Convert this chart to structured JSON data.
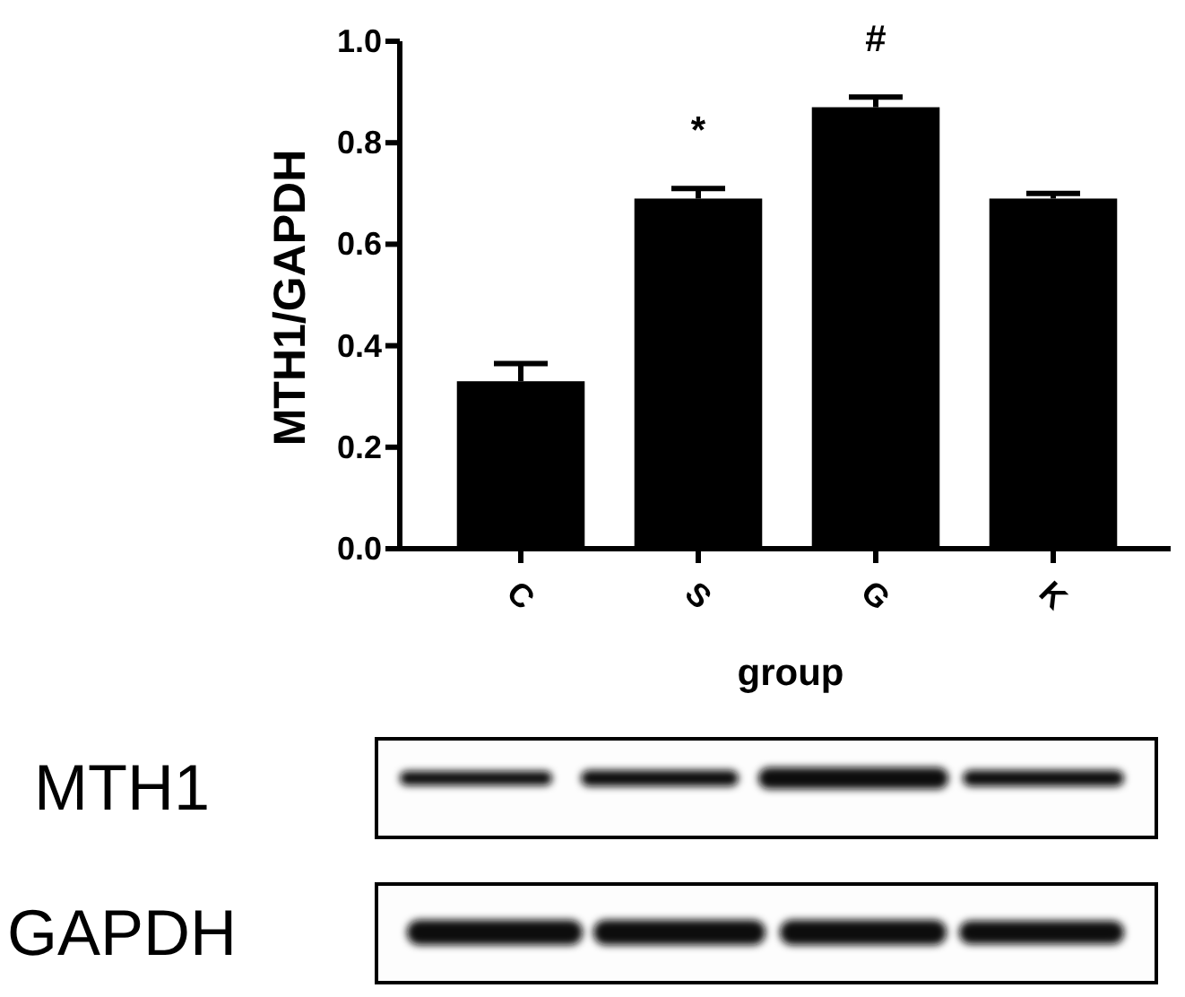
{
  "chart_data": {
    "type": "bar",
    "xlabel": "group",
    "ylabel": "MTH1/GAPDH",
    "categories": [
      "C",
      "S",
      "G",
      "K"
    ],
    "values": [
      0.33,
      0.69,
      0.87,
      0.69
    ],
    "color": "#000000",
    "errors": [
      [
        0.33,
        0.365
      ],
      [
        0.69,
        0.71
      ],
      [
        0.87,
        0.89
      ],
      [
        0.69,
        0.7
      ]
    ],
    "ylim": [
      0,
      1
    ],
    "yticks": [
      {
        "value": 0,
        "label": "0.0"
      },
      0.2,
      0.4,
      0.6,
      0.8,
      {
        "value": 1,
        "label": "1.0"
      }
    ],
    "annotations": [
      {
        "text": "*",
        "x": "S",
        "y": 0.69
      },
      {
        "text": "#",
        "x": "G",
        "y": 0.87
      },
      "MTH1",
      "GAPDH"
    ]
  }
}
